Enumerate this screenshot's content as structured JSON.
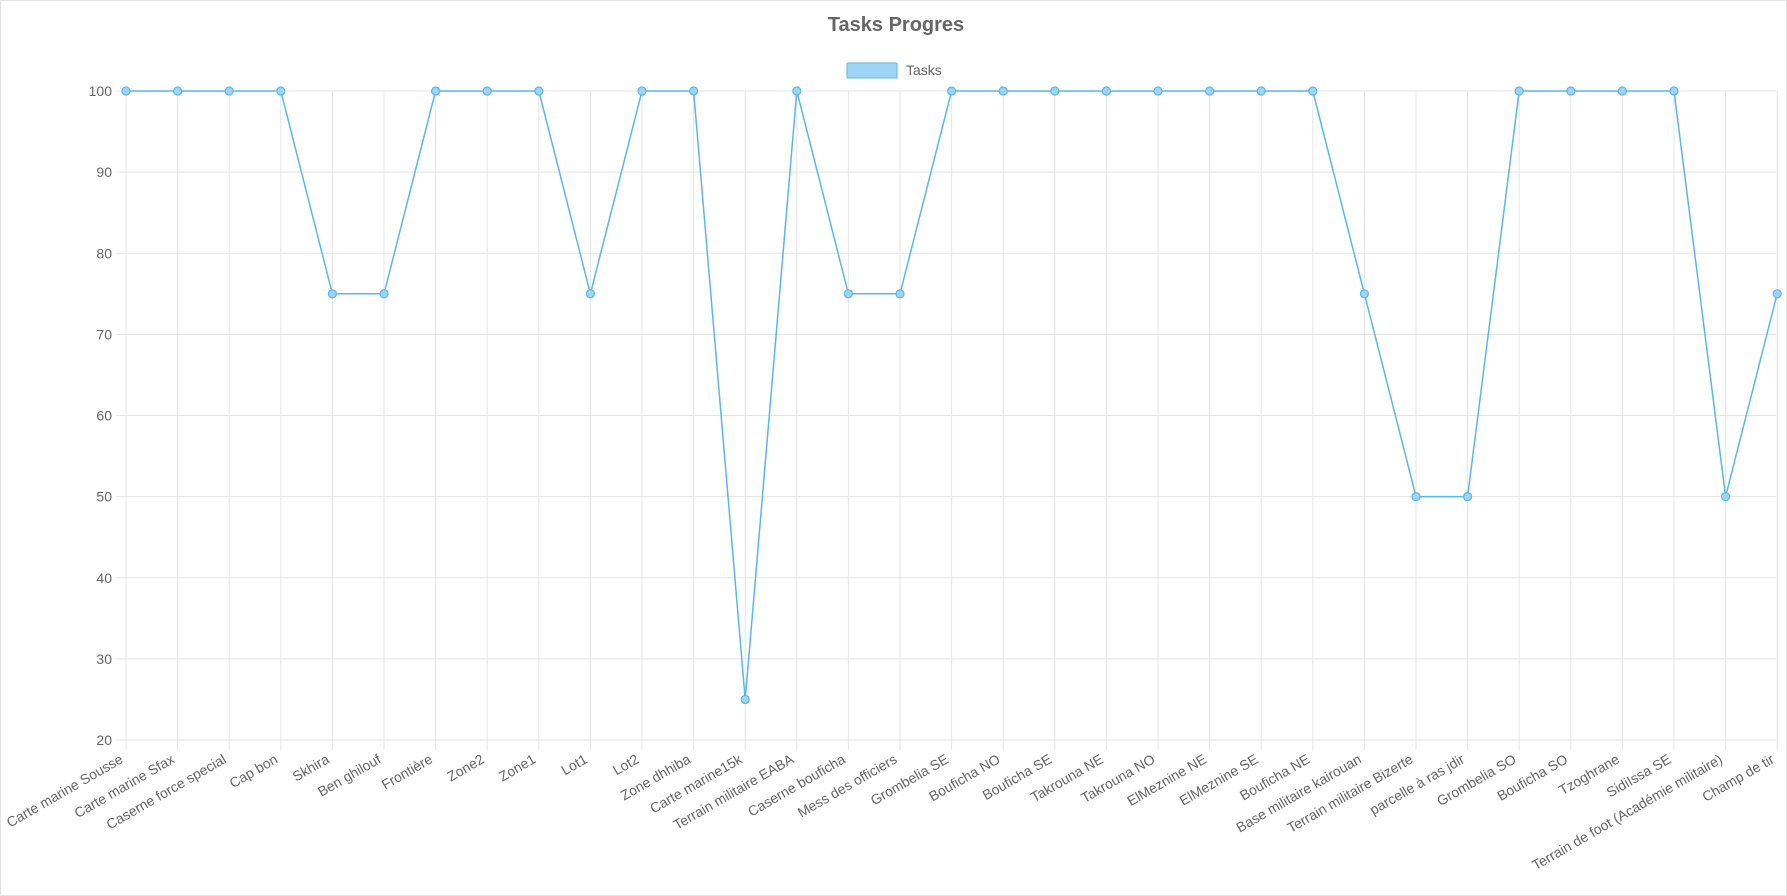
{
  "chart_data": {
    "type": "line",
    "title": "Tasks Progres",
    "xlabel": "",
    "ylabel": "",
    "ylim": [
      20,
      100
    ],
    "yticks": [
      100,
      90,
      80,
      70,
      60,
      50,
      40,
      30,
      20
    ],
    "grid": true,
    "legend_position": "top-center",
    "categories": [
      "Carte marine Sousse",
      "Carte marine Sfax",
      "Caserne force special",
      "Cap bon",
      "Skhira",
      "Ben ghilouf",
      "Frontière",
      "Zone2",
      "Zone1",
      "Lot1",
      "Lot2",
      "Zone dhhiba",
      "Carte marine15k",
      "Terrain militaire EABA",
      "Caserne bouficha",
      "Mess des officiers",
      "Grombelia SE",
      "Bouficha NO",
      "Bouficha SE",
      "Takrouna NE",
      "Takrouna NO",
      "ElMeznine NE",
      "ElMeznine SE",
      "Bouficha NE",
      "Base militaire kairouan",
      "Terrain militaire Bizerte",
      "parcelle à ras jdir",
      "Grombelia SO",
      "Bouficha SO",
      "Tzoghrane",
      "SidiIssa SE",
      "Terrain de foot (Académie militaire)",
      "Champ de tir"
    ],
    "series": [
      {
        "name": "Tasks",
        "color": "#5ab7ea",
        "fill_color": "#9fd4f5",
        "values": [
          100,
          100,
          100,
          100,
          75,
          75,
          100,
          100,
          100,
          75,
          100,
          100,
          25,
          100,
          75,
          75,
          100,
          100,
          100,
          100,
          100,
          100,
          100,
          100,
          75,
          50,
          50,
          100,
          100,
          100,
          100,
          50,
          75
        ]
      }
    ],
    "colors": {
      "grid": "#e5e5e5",
      "axis_text": "#666666",
      "title": "#666666"
    }
  }
}
